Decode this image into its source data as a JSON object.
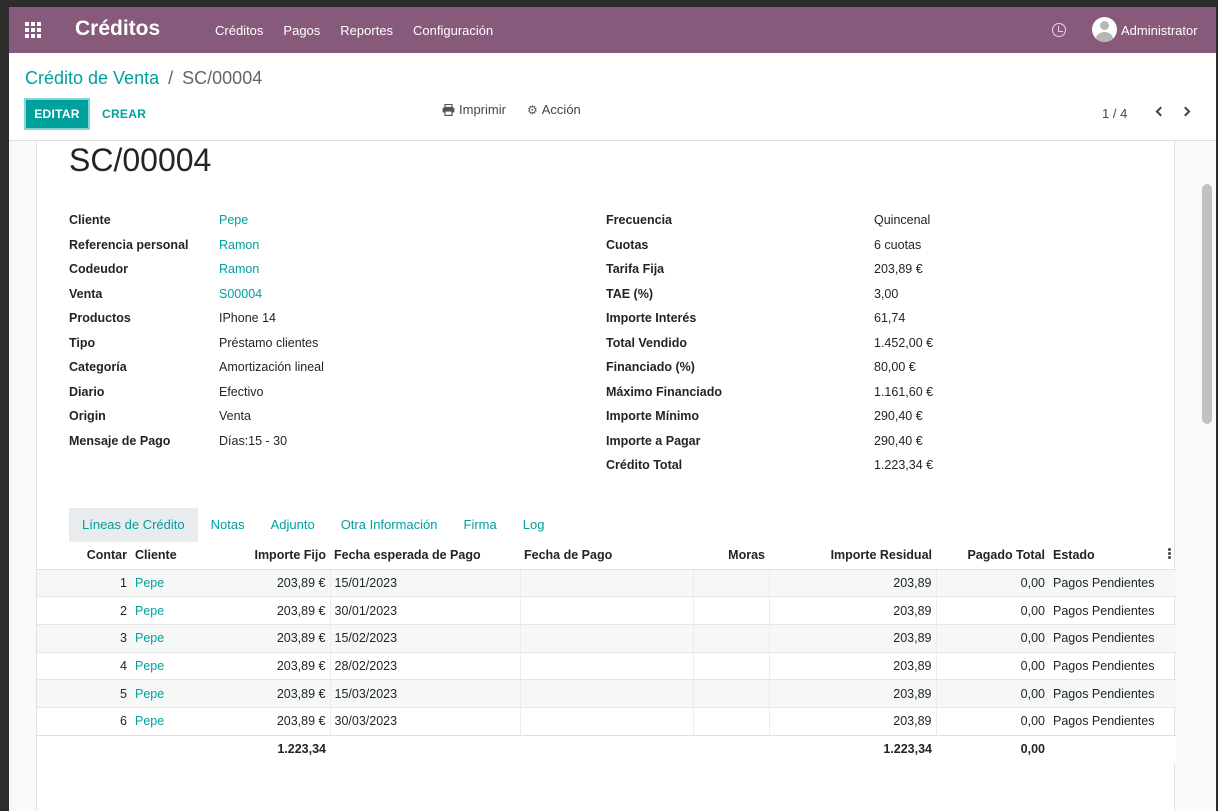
{
  "navbar": {
    "app_title": "Créditos",
    "menu": [
      "Créditos",
      "Pagos",
      "Reportes",
      "Configuración"
    ],
    "user": "Administrator"
  },
  "breadcrumb": {
    "parent": "Crédito de Venta",
    "separator": "/",
    "current": "SC/00004"
  },
  "toolbar": {
    "edit_label": "EDITAR",
    "create_label": "CREAR",
    "print_label": "Imprimir",
    "action_label": "Acción",
    "pager": "1 / 4"
  },
  "record": {
    "title": "SC/00004",
    "left_fields": [
      {
        "label": "Cliente",
        "value": "Pepe",
        "link": true
      },
      {
        "label": "Referencia personal",
        "value": "Ramon",
        "link": true
      },
      {
        "label": "Codeudor",
        "value": "Ramon",
        "link": true
      },
      {
        "label": "Venta",
        "value": "S00004",
        "link": true
      },
      {
        "label": "Productos",
        "value": "IPhone 14",
        "link": false
      },
      {
        "label": "Tipo",
        "value": "Préstamo clientes",
        "link": false
      },
      {
        "label": "Categoría",
        "value": "Amortización lineal",
        "link": false
      },
      {
        "label": "Diario",
        "value": "Efectivo",
        "link": false
      },
      {
        "label": "Origin",
        "value": "Venta",
        "link": false
      },
      {
        "label": "Mensaje de Pago",
        "value": "Días:15 - 30",
        "link": false
      }
    ],
    "right_fields": [
      {
        "label": "Frecuencia",
        "value": "Quincenal"
      },
      {
        "label": "Cuotas",
        "value": "6 cuotas"
      },
      {
        "label": "Tarifa Fija",
        "value": "203,89 €"
      },
      {
        "label": "TAE (%)",
        "value": "3,00"
      },
      {
        "label": "Importe Interés",
        "value": "61,74"
      },
      {
        "label": "Total Vendido",
        "value": "1.452,00 €"
      },
      {
        "label": "Financiado (%)",
        "value": "80,00 €"
      },
      {
        "label": "Máximo Financiado",
        "value": "1.161,60 €"
      },
      {
        "label": "Importe Mínimo",
        "value": "290,40 €"
      },
      {
        "label": "Importe a Pagar",
        "value": "290,40 €"
      },
      {
        "label": "Crédito Total",
        "value": "1.223,34 €"
      }
    ]
  },
  "tabs": [
    "Líneas de Crédito",
    "Notas",
    "Adjunto",
    "Otra Información",
    "Firma",
    "Log"
  ],
  "lines": {
    "columns": [
      "Contar",
      "Cliente",
      "Importe Fijo",
      "Fecha esperada de Pago",
      "Fecha de Pago",
      "Moras",
      "Importe Residual",
      "Pagado Total",
      "Estado"
    ],
    "rows": [
      {
        "count": "1",
        "client": "Pepe",
        "fixed": "203,89 €",
        "expected": "15/01/2023",
        "paid_date": "",
        "late": "",
        "residual": "203,89",
        "paid": "0,00",
        "status": "Pagos Pendientes"
      },
      {
        "count": "2",
        "client": "Pepe",
        "fixed": "203,89 €",
        "expected": "30/01/2023",
        "paid_date": "",
        "late": "",
        "residual": "203,89",
        "paid": "0,00",
        "status": "Pagos Pendientes"
      },
      {
        "count": "3",
        "client": "Pepe",
        "fixed": "203,89 €",
        "expected": "15/02/2023",
        "paid_date": "",
        "late": "",
        "residual": "203,89",
        "paid": "0,00",
        "status": "Pagos Pendientes"
      },
      {
        "count": "4",
        "client": "Pepe",
        "fixed": "203,89 €",
        "expected": "28/02/2023",
        "paid_date": "",
        "late": "",
        "residual": "203,89",
        "paid": "0,00",
        "status": "Pagos Pendientes"
      },
      {
        "count": "5",
        "client": "Pepe",
        "fixed": "203,89 €",
        "expected": "15/03/2023",
        "paid_date": "",
        "late": "",
        "residual": "203,89",
        "paid": "0,00",
        "status": "Pagos Pendientes"
      },
      {
        "count": "6",
        "client": "Pepe",
        "fixed": "203,89 €",
        "expected": "30/03/2023",
        "paid_date": "",
        "late": "",
        "residual": "203,89",
        "paid": "0,00",
        "status": "Pagos Pendientes"
      }
    ],
    "totals": {
      "fixed": "1.223,34",
      "residual": "1.223,34",
      "paid": "0,00"
    }
  },
  "icons": {
    "apps": "apps-grid-icon",
    "clock": "clock-icon",
    "print": "printer-icon",
    "gear": "gear-icon",
    "prev": "chevron-left-icon",
    "next": "chevron-right-icon",
    "optional_columns": "kebab-icon"
  },
  "colors": {
    "navbar": "#875a7b",
    "accent": "#00a09d"
  }
}
